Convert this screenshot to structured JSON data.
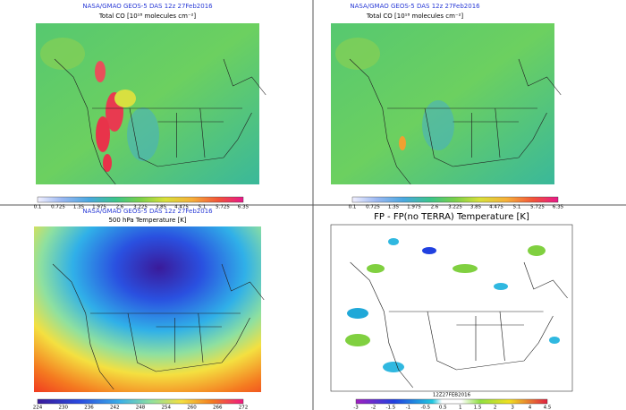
{
  "panels": [
    {
      "header": "NASA/GMAO GEOS-5 DAS 12z 27Feb2016",
      "title": "Total CO [10¹⁸ molecules cm⁻²]",
      "colorbar_ticks": [
        0.1,
        0.725,
        1.35,
        1.975,
        2.6,
        3.225,
        3.85,
        4.475,
        5.1,
        5.725,
        6.35
      ]
    },
    {
      "header": "NASA/GMAO GEOS-5 DAS 12z 27Feb2016",
      "title": "Total CO [10¹⁸ molecules cm⁻²]",
      "colorbar_ticks": [
        0.1,
        0.725,
        1.35,
        1.975,
        2.6,
        3.225,
        3.85,
        4.475,
        5.1,
        5.725,
        6.35
      ]
    },
    {
      "header": "NASA/GMAO GEOS-5 DAS 12z 27Feb2016",
      "title": "500 hPa Temperature [K]",
      "colorbar_ticks": [
        224,
        230,
        236,
        242,
        248,
        254,
        260,
        266,
        272
      ]
    },
    {
      "title": "FP - FP(no TERRA) Temperature [K]",
      "footer": "12Z27FEB2016",
      "colorbar_ticks": [
        -3,
        -2,
        -1.5,
        -1,
        -0.5,
        0.5,
        1,
        1.5,
        2,
        3,
        4,
        4.5
      ]
    }
  ]
}
